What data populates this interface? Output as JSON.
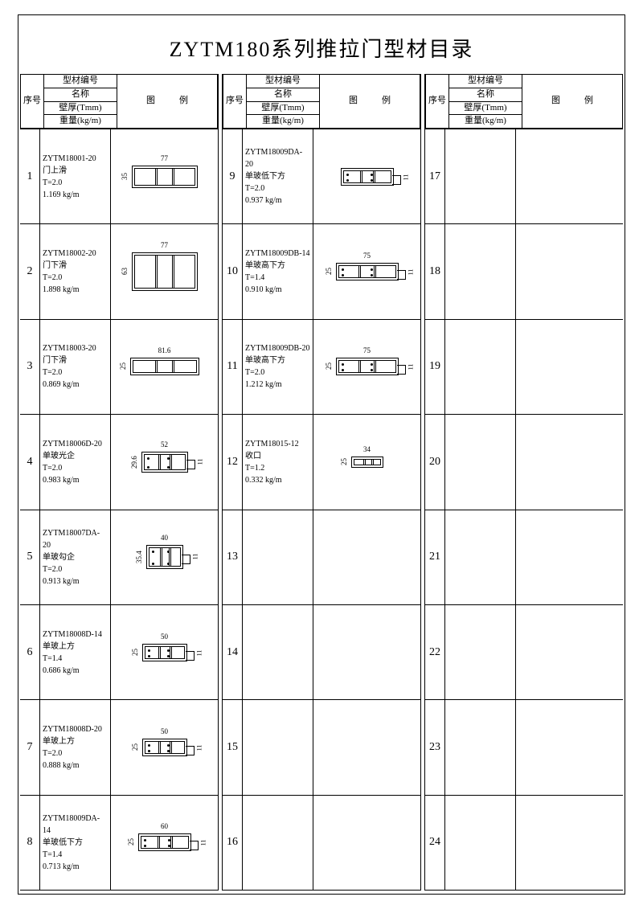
{
  "title": "ZYTM180系列推拉门型材目录",
  "header": {
    "seq": "序号",
    "spec_code": "型材编号",
    "spec_name": "名称",
    "spec_thick": "壁厚(Tmm)",
    "spec_weight": "重量(kg/m)",
    "diagram": "图例"
  },
  "columns": [
    {
      "rows": [
        {
          "seq": "1",
          "code": "ZYTM18001-20",
          "name": "门上滑",
          "t": "T=2.0",
          "w": "1.169 kg/m",
          "dim_w": "77",
          "dim_h": "35",
          "pw": 82,
          "ph": 28,
          "stub": false
        },
        {
          "seq": "2",
          "code": "ZYTM18002-20",
          "name": "门下滑",
          "t": "T=2.0",
          "w": "1.898 kg/m",
          "dim_w": "77",
          "dim_h": "63",
          "pw": 82,
          "ph": 48,
          "stub": false
        },
        {
          "seq": "3",
          "code": "ZYTM18003-20",
          "name": "门下滑",
          "t": "T=2.0",
          "w": "0.869 kg/m",
          "dim_w": "81.6",
          "dim_h": "25",
          "pw": 86,
          "ph": 22,
          "stub": false
        },
        {
          "seq": "4",
          "code": "ZYTM18006D-20",
          "name": "单玻光企",
          "t": "T=2.0",
          "w": "0.983 kg/m",
          "dim_w": "52",
          "dim_h": "29.6",
          "pw": 58,
          "ph": 26,
          "stub": true
        },
        {
          "seq": "5",
          "code": "ZYTM18007DA-20",
          "name": "单玻勾企",
          "t": "T=2.0",
          "w": "0.913 kg/m",
          "dim_w": "40",
          "dim_h": "35.4",
          "pw": 46,
          "ph": 30,
          "stub": true
        },
        {
          "seq": "6",
          "code": "ZYTM18008D-14",
          "name": "单玻上方",
          "t": "T=1.4",
          "w": "0.686 kg/m",
          "dim_w": "50",
          "dim_h": "25",
          "pw": 56,
          "ph": 22,
          "stub": true
        },
        {
          "seq": "7",
          "code": "ZYTM18008D-20",
          "name": "单玻上方",
          "t": "T=2.0",
          "w": "0.888 kg/m",
          "dim_w": "50",
          "dim_h": "25",
          "pw": 56,
          "ph": 22,
          "stub": true
        },
        {
          "seq": "8",
          "code": "ZYTM18009DA-14",
          "name": "单玻低下方",
          "t": "T=1.4",
          "w": "0.713 kg/m",
          "dim_w": "60",
          "dim_h": "25",
          "pw": 66,
          "ph": 22,
          "stub": true
        }
      ]
    },
    {
      "rows": [
        {
          "seq": "9",
          "code": "ZYTM18009DA-20",
          "name": "单玻低下方",
          "t": "T=2.0",
          "w": "0.937 kg/m",
          "dim_w": "",
          "dim_h": "",
          "pw": 66,
          "ph": 22,
          "stub": true
        },
        {
          "seq": "10",
          "code": "ZYTM18009DB-14",
          "name": "单玻高下方",
          "t": "T=1.4",
          "w": "0.910 kg/m",
          "dim_w": "75",
          "dim_h": "25",
          "pw": 78,
          "ph": 22,
          "stub": true
        },
        {
          "seq": "11",
          "code": "ZYTM18009DB-20",
          "name": "单玻高下方",
          "t": "T=2.0",
          "w": "1.212 kg/m",
          "dim_w": "75",
          "dim_h": "25",
          "pw": 78,
          "ph": 22,
          "stub": true
        },
        {
          "seq": "12",
          "code": "ZYTM18015-12",
          "name": "收口",
          "t": "T=1.2",
          "w": "0.332 kg/m",
          "dim_w": "34",
          "dim_h": "25",
          "pw": 40,
          "ph": 14,
          "stub": false
        },
        {
          "seq": "13"
        },
        {
          "seq": "14"
        },
        {
          "seq": "15"
        },
        {
          "seq": "16"
        }
      ]
    },
    {
      "rows": [
        {
          "seq": "17"
        },
        {
          "seq": "18"
        },
        {
          "seq": "19"
        },
        {
          "seq": "20"
        },
        {
          "seq": "21"
        },
        {
          "seq": "22"
        },
        {
          "seq": "23"
        },
        {
          "seq": "24"
        }
      ]
    }
  ]
}
